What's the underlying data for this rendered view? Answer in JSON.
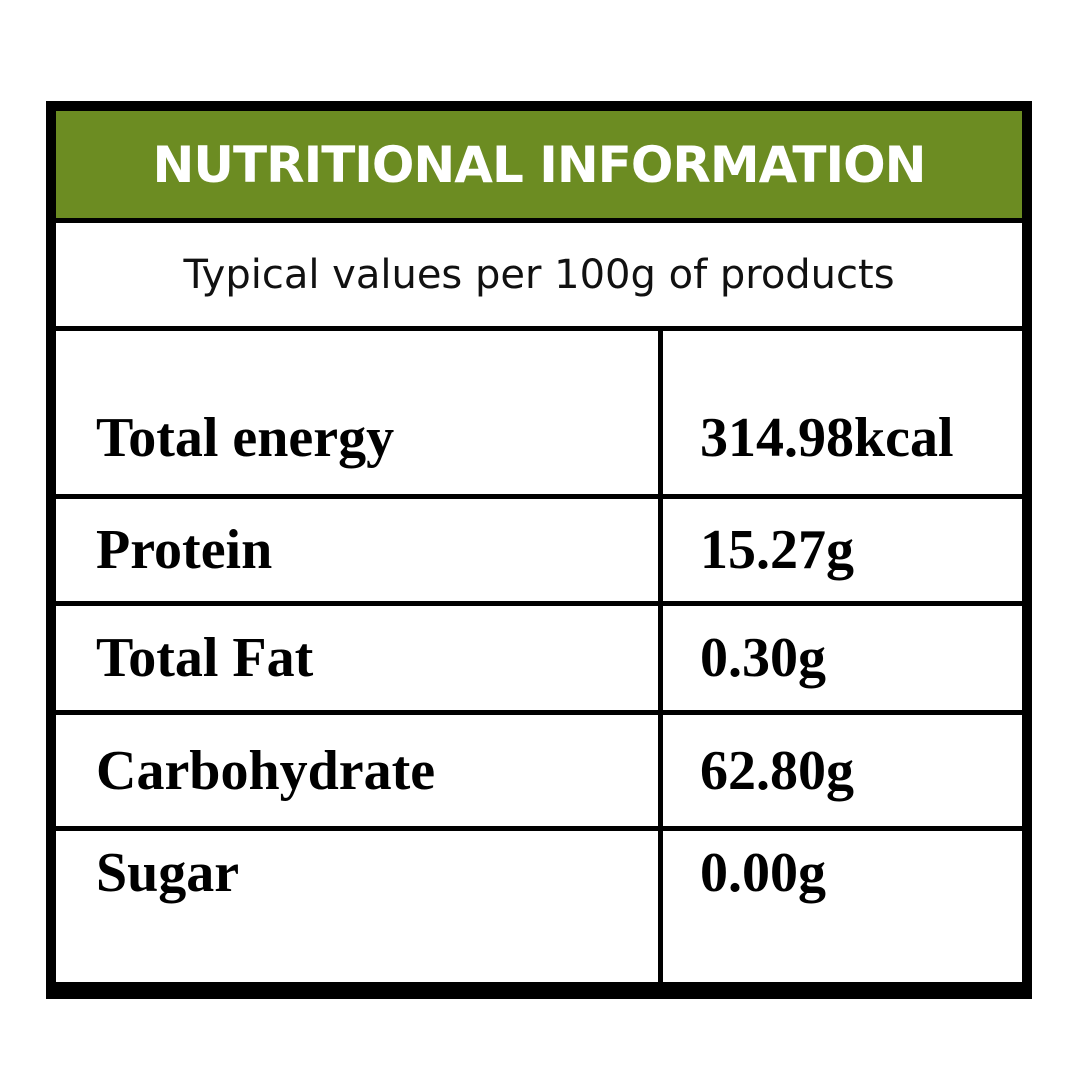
{
  "header": {
    "title": "NUTRITIONAL INFORMATION",
    "subtitle": "Typical values per 100g of products"
  },
  "table": {
    "rows": [
      [
        "Total energy",
        "314.98kcal"
      ],
      [
        "Protein",
        "15.27g"
      ],
      [
        "Total Fat",
        "0.30g"
      ],
      [
        "Carbohydrate",
        "62.80g"
      ],
      [
        "Sugar",
        "0.00g"
      ]
    ]
  }
}
